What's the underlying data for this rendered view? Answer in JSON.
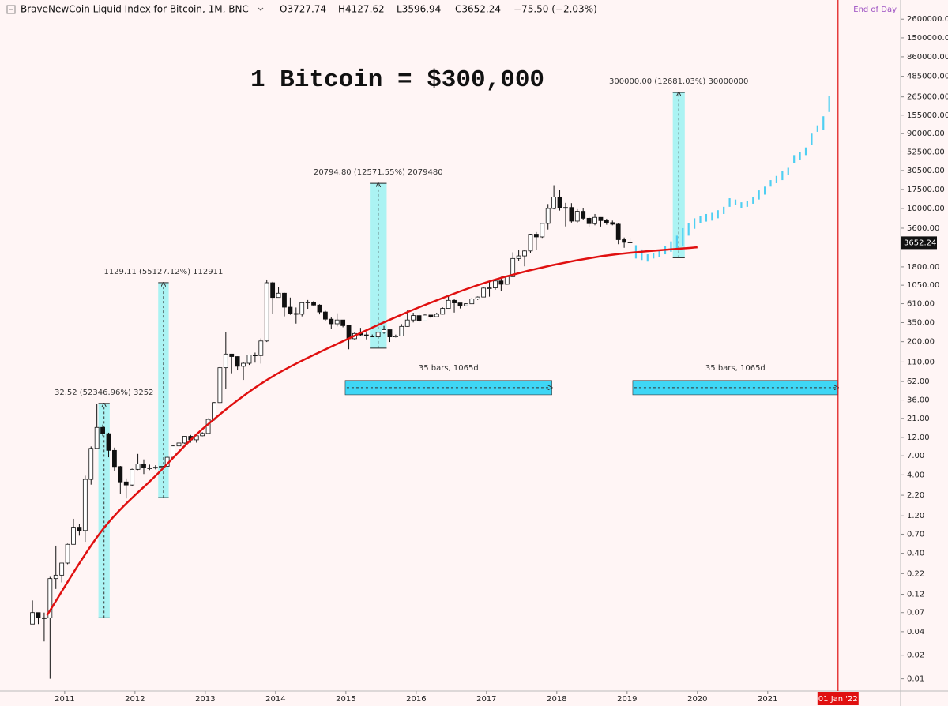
{
  "chart_data": {
    "type": "candlestick",
    "title": "BraveNewCoin Liquid Index for Bitcoin, 1M, BNC",
    "ohlc_header": [
      "O3727.74",
      "H4127.62",
      "L3596.94",
      "C3652.24",
      "−75.50 (−2.03%)"
    ],
    "status": "End of Day",
    "headline": "1 Bitcoin = $300,000",
    "last_price": 3652.24,
    "date_marker": {
      "value": 2022.0,
      "label": "01 Jan '22"
    },
    "log_scale": true,
    "xlim": [
      2010.08,
      2022.89
    ],
    "xticks": [
      2011,
      2012,
      2013,
      2014,
      2015,
      2016,
      2017,
      2018,
      2019,
      2020,
      2021
    ],
    "ylim": [
      0.007,
      4560000
    ],
    "yticks": [
      {
        "value": 2600000,
        "label": "2600000.00"
      },
      {
        "value": 1500000,
        "label": "1500000.00"
      },
      {
        "value": 860000,
        "label": "860000.00"
      },
      {
        "value": 485000,
        "label": "485000.00"
      },
      {
        "value": 265000,
        "label": "265000.00"
      },
      {
        "value": 155000,
        "label": "155000.00"
      },
      {
        "value": 90000,
        "label": "90000.00"
      },
      {
        "value": 52500,
        "label": "52500.00"
      },
      {
        "value": 30500,
        "label": "30500.00"
      },
      {
        "value": 17500,
        "label": "17500.00"
      },
      {
        "value": 10000,
        "label": "10000.00"
      },
      {
        "value": 5600,
        "label": "5600.00"
      },
      {
        "value": 1800,
        "label": "1800.00"
      },
      {
        "value": 1050,
        "label": "1050.00"
      },
      {
        "value": 610,
        "label": "610.00"
      },
      {
        "value": 350,
        "label": "350.00"
      },
      {
        "value": 200,
        "label": "200.00"
      },
      {
        "value": 110,
        "label": "110.00"
      },
      {
        "value": 62,
        "label": "62.00"
      },
      {
        "value": 36,
        "label": "36.00"
      },
      {
        "value": 21,
        "label": "21.00"
      },
      {
        "value": 12,
        "label": "12.00"
      },
      {
        "value": 7,
        "label": "7.00"
      },
      {
        "value": 4,
        "label": "4.00"
      },
      {
        "value": 2.2,
        "label": "2.20"
      },
      {
        "value": 1.2,
        "label": "1.20"
      },
      {
        "value": 0.7,
        "label": "0.70"
      },
      {
        "value": 0.4,
        "label": "0.40"
      },
      {
        "value": 0.22,
        "label": "0.22"
      },
      {
        "value": 0.12,
        "label": "0.12"
      },
      {
        "value": 0.07,
        "label": "0.07"
      },
      {
        "value": 0.04,
        "label": "0.04"
      },
      {
        "value": 0.02,
        "label": "0.02"
      },
      {
        "value": 0.01,
        "label": "0.01"
      }
    ],
    "candles": [
      [
        0.05,
        0.1,
        0.05,
        0.07
      ],
      [
        0.07,
        0.07,
        0.05,
        0.06
      ],
      [
        0.06,
        0.07,
        0.03,
        0.06
      ],
      [
        0.06,
        0.2,
        0.01,
        0.19
      ],
      [
        0.19,
        0.5,
        0.14,
        0.21
      ],
      [
        0.21,
        0.3,
        0.17,
        0.3
      ],
      [
        0.3,
        0.53,
        0.29,
        0.52
      ],
      [
        0.52,
        1.1,
        0.52,
        0.86
      ],
      [
        0.86,
        0.95,
        0.67,
        0.78
      ],
      [
        0.78,
        3.9,
        0.56,
        3.5
      ],
      [
        3.5,
        9.2,
        3.0,
        8.7
      ],
      [
        8.7,
        31.9,
        8.5,
        16.1
      ],
      [
        16.1,
        17.5,
        12.5,
        13.4
      ],
      [
        13.4,
        13.8,
        6.7,
        8.2
      ],
      [
        8.2,
        8.9,
        4.5,
        5.1
      ],
      [
        5.1,
        5.2,
        2.3,
        3.25
      ],
      [
        3.25,
        3.6,
        2.0,
        2.97
      ],
      [
        2.97,
        4.8,
        2.9,
        4.7
      ],
      [
        4.7,
        7.4,
        4.6,
        5.5
      ],
      [
        5.5,
        6.3,
        4.1,
        4.9
      ],
      [
        4.9,
        5.4,
        4.6,
        4.9
      ],
      [
        4.9,
        5.3,
        4.7,
        5.0
      ],
      [
        5.0,
        5.2,
        4.9,
        5.15
      ],
      [
        5.15,
        6.9,
        5.1,
        6.7
      ],
      [
        6.7,
        9.7,
        6.5,
        9.35
      ],
      [
        9.35,
        16,
        7.1,
        10.2
      ],
      [
        10.2,
        12.5,
        9.9,
        12.4
      ],
      [
        12.4,
        12.9,
        10.3,
        11.2
      ],
      [
        11.2,
        12.8,
        10.3,
        12.6
      ],
      [
        12.6,
        14,
        12.4,
        13.5
      ],
      [
        13.5,
        21,
        13.3,
        20.4
      ],
      [
        20.4,
        34,
        19.6,
        33.4
      ],
      [
        33.4,
        95,
        33,
        93
      ],
      [
        93,
        266,
        50,
        139
      ],
      [
        139,
        140,
        79,
        129
      ],
      [
        129,
        130,
        86,
        97
      ],
      [
        97,
        110,
        65,
        106
      ],
      [
        106,
        136,
        101,
        135
      ],
      [
        135,
        145,
        108,
        133
      ],
      [
        133,
        220,
        105,
        204
      ],
      [
        204,
        1240,
        198,
        1129
      ],
      [
        1129,
        1160,
        450,
        732
      ],
      [
        732,
        1000,
        730,
        830
      ],
      [
        830,
        840,
        420,
        550
      ],
      [
        550,
        730,
        440,
        457
      ],
      [
        457,
        545,
        340,
        448
      ],
      [
        448,
        630,
        420,
        628
      ],
      [
        628,
        680,
        525,
        640
      ],
      [
        640,
        660,
        565,
        586
      ],
      [
        586,
        600,
        445,
        478
      ],
      [
        478,
        495,
        365,
        387
      ],
      [
        387,
        415,
        290,
        338
      ],
      [
        338,
        460,
        313,
        378
      ],
      [
        378,
        380,
        305,
        320
      ],
      [
        320,
        320,
        160,
        218
      ],
      [
        218,
        265,
        212,
        254
      ],
      [
        254,
        300,
        237,
        244
      ],
      [
        244,
        261,
        214,
        236
      ],
      [
        236,
        247,
        228,
        230
      ],
      [
        230,
        268,
        221,
        263
      ],
      [
        263,
        318,
        252,
        284
      ],
      [
        284,
        285,
        198,
        230
      ],
      [
        230,
        246,
        226,
        236
      ],
      [
        236,
        335,
        235,
        313
      ],
      [
        313,
        500,
        310,
        378
      ],
      [
        378,
        468,
        352,
        430
      ],
      [
        430,
        465,
        350,
        368
      ],
      [
        368,
        445,
        365,
        437
      ],
      [
        437,
        440,
        395,
        416
      ],
      [
        416,
        468,
        413,
        448
      ],
      [
        448,
        548,
        444,
        531
      ],
      [
        531,
        780,
        530,
        673
      ],
      [
        673,
        700,
        470,
        624
      ],
      [
        624,
        625,
        530,
        573
      ],
      [
        573,
        618,
        568,
        608
      ],
      [
        608,
        720,
        605,
        700
      ],
      [
        700,
        755,
        680,
        742
      ],
      [
        742,
        980,
        740,
        964
      ],
      [
        964,
        1160,
        750,
        970
      ],
      [
        970,
        1210,
        920,
        1190
      ],
      [
        1190,
        1350,
        890,
        1080
      ],
      [
        1080,
        1370,
        1070,
        1350
      ],
      [
        1350,
        2760,
        1340,
        2300
      ],
      [
        2300,
        2980,
        2130,
        2480
      ],
      [
        2480,
        2920,
        1830,
        2870
      ],
      [
        2870,
        4750,
        2680,
        4700
      ],
      [
        4700,
        5000,
        2980,
        4340
      ],
      [
        4340,
        6470,
        4120,
        6450
      ],
      [
        6450,
        11400,
        5380,
        10000
      ],
      [
        10000,
        19800,
        9750,
        14000
      ],
      [
        14000,
        17200,
        9400,
        10200
      ],
      [
        10200,
        11800,
        5900,
        10300
      ],
      [
        10300,
        11700,
        6600,
        6900
      ],
      [
        6900,
        9800,
        6500,
        9200
      ],
      [
        9200,
        10000,
        7100,
        7500
      ],
      [
        7500,
        7800,
        5750,
        6400
      ],
      [
        6400,
        8500,
        6100,
        7700
      ],
      [
        7700,
        7750,
        5880,
        7000
      ],
      [
        7000,
        7400,
        6200,
        6600
      ],
      [
        6600,
        7000,
        6100,
        6300
      ],
      [
        6300,
        6550,
        3500,
        4000
      ],
      [
        4000,
        4260,
        3150,
        3700
      ],
      [
        3727.74,
        4127.62,
        3596.94,
        3652.24
      ]
    ],
    "projection": [
      [
        2300,
        3400
      ],
      [
        2200,
        3000
      ],
      [
        2100,
        2600
      ],
      [
        2300,
        2700
      ],
      [
        2400,
        2900
      ],
      [
        2600,
        3300
      ],
      [
        2800,
        3800
      ],
      [
        3000,
        4500
      ],
      [
        3300,
        5600
      ],
      [
        4500,
        6500
      ],
      [
        5500,
        7500
      ],
      [
        6500,
        8000
      ],
      [
        6800,
        8500
      ],
      [
        7000,
        8800
      ],
      [
        7500,
        9500
      ],
      [
        8500,
        10500
      ],
      [
        10500,
        13500
      ],
      [
        11000,
        13000
      ],
      [
        10000,
        12000
      ],
      [
        10500,
        12500
      ],
      [
        11500,
        14000
      ],
      [
        13000,
        17000
      ],
      [
        15000,
        19000
      ],
      [
        19000,
        23000
      ],
      [
        21000,
        26000
      ],
      [
        23000,
        30000
      ],
      [
        27000,
        33000
      ],
      [
        38000,
        48000
      ],
      [
        42000,
        52000
      ],
      [
        48000,
        60000
      ],
      [
        65000,
        90000
      ],
      [
        95000,
        115000
      ],
      [
        100000,
        150000
      ],
      [
        170000,
        270000
      ]
    ],
    "curve": {
      "x": [
        2010.75,
        2011.54,
        2012.33,
        2013.0,
        2013.9,
        2015.02,
        2016.15,
        2017.27,
        2018.62,
        2020.0
      ],
      "y": [
        0.065,
        0.8,
        4.2,
        16.5,
        67,
        215,
        600,
        1350,
        2450,
        3200
      ]
    },
    "price_ranges": [
      {
        "text": "32.52 (52346.96%) 3252",
        "x": [
          2011.48,
          2011.64
        ],
        "y": [
          0.06,
          32.6
        ]
      },
      {
        "text": "1129.11 (55127.12%) 112911",
        "x": [
          2012.33,
          2012.48
        ],
        "y": [
          2.05,
          1131
        ]
      },
      {
        "text": "20794.80 (12571.55%) 2079480",
        "x": [
          2015.34,
          2015.58
        ],
        "y": [
          165,
          20960
        ]
      },
      {
        "text": "300000.00 (12681.03%) 30000000",
        "x": [
          2019.65,
          2019.82
        ],
        "y": [
          2350,
          302000
        ]
      }
    ],
    "date_ranges": [
      {
        "text": "35 bars, 1065d",
        "x": [
          2014.99,
          2017.93
        ],
        "y": [
          42,
          64
        ]
      },
      {
        "text": "35 bars, 1065d",
        "x": [
          2019.08,
          2022.0
        ],
        "y": [
          42,
          64
        ]
      }
    ]
  }
}
